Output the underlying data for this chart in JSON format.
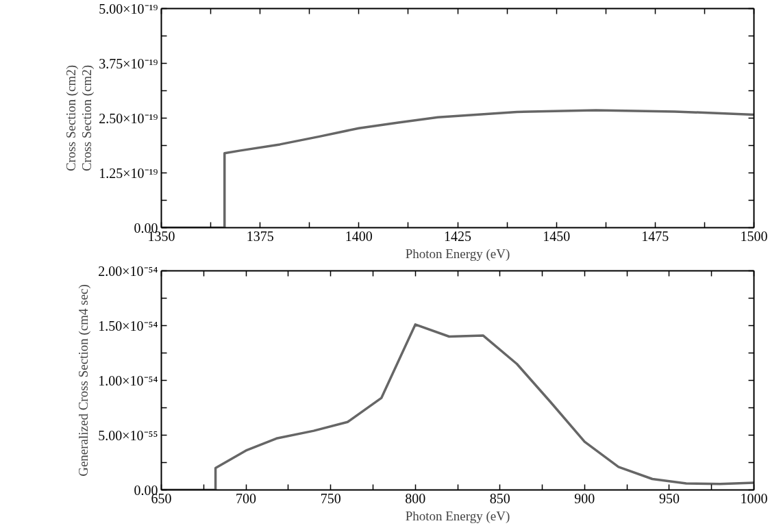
{
  "chart_data": [
    {
      "type": "line",
      "xlabel": "Photon Energy (eV)",
      "ylabel": "Cross Section (cm2)",
      "annotations": [
        "Cross Section (cm2)"
      ],
      "x": [
        1350,
        1366,
        1366,
        1370,
        1380,
        1390,
        1400,
        1410,
        1420,
        1440,
        1460,
        1480,
        1500
      ],
      "series": [
        {
          "color": "#666666",
          "values": [
            0,
            0,
            1.7e-19,
            1.76e-19,
            1.9e-19,
            2.08e-19,
            2.27e-19,
            2.4e-19,
            2.52e-19,
            2.64e-19,
            2.68e-19,
            2.65e-19,
            2.58e-19
          ]
        }
      ],
      "xlim": [
        1350,
        1500
      ],
      "ylim": [
        0,
        5e-19
      ],
      "xticks": [
        1350,
        {
          "value": 1362.5,
          "label": null
        },
        1375,
        {
          "value": 1387.5,
          "label": null
        },
        1400,
        {
          "value": 1412.5,
          "label": null
        },
        1425,
        {
          "value": 1437.5,
          "label": null
        },
        1450,
        {
          "value": 1462.5,
          "label": null
        },
        1475,
        {
          "value": 1487.5,
          "label": null
        },
        1500
      ],
      "yticks": [
        {
          "value": 0,
          "label": "0.00"
        },
        {
          "value": 6.25e-20,
          "label": null
        },
        {
          "value": 1.25e-19,
          "label": "1.25×10⁻¹⁹"
        },
        {
          "value": 1.875e-19,
          "label": null
        },
        {
          "value": 2.5e-19,
          "label": "2.50×10⁻¹⁹"
        },
        {
          "value": 3.125e-19,
          "label": null
        },
        {
          "value": 3.75e-19,
          "label": "3.75×10⁻¹⁹"
        },
        {
          "value": 4.375e-19,
          "label": null
        },
        {
          "value": 5e-19,
          "label": "5.00×10⁻¹⁹"
        }
      ],
      "grid": false,
      "marker": "none",
      "line_style": "solid"
    },
    {
      "type": "line",
      "xlabel": "Photon Energy (eV)",
      "ylabel": "Generalized Cross Section (cm4 sec)",
      "x": [
        650,
        682,
        682,
        700,
        718,
        740,
        760,
        780,
        800,
        820,
        840,
        860,
        880,
        900,
        920,
        940,
        960,
        980,
        1000
      ],
      "series": [
        {
          "color": "#666666",
          "values": [
            0,
            0,
            2e-55,
            3.6e-55,
            4.7e-55,
            5.4e-55,
            6.2e-55,
            8.4e-55,
            1.51e-54,
            1.4e-54,
            1.41e-54,
            1.15e-54,
            8e-55,
            4.4e-55,
            2.1e-55,
            1e-55,
            6e-56,
            5.5e-56,
            6.5e-56
          ]
        }
      ],
      "xlim": [
        650,
        1000
      ],
      "ylim": [
        0,
        2e-54
      ],
      "xticks": [
        650,
        {
          "value": 675,
          "label": null
        },
        700,
        {
          "value": 725,
          "label": null
        },
        750,
        {
          "value": 775,
          "label": null
        },
        800,
        {
          "value": 825,
          "label": null
        },
        850,
        {
          "value": 875,
          "label": null
        },
        900,
        {
          "value": 925,
          "label": null
        },
        950,
        {
          "value": 975,
          "label": null
        },
        1000
      ],
      "yticks": [
        {
          "value": 0,
          "label": "0.00"
        },
        {
          "value": 2.5e-55,
          "label": null
        },
        {
          "value": 5e-55,
          "label": "5.00×10⁻⁵⁵"
        },
        {
          "value": 7.5e-55,
          "label": null
        },
        {
          "value": 1e-54,
          "label": "1.00×10⁻⁵⁴"
        },
        {
          "value": 1.25e-54,
          "label": null
        },
        {
          "value": 1.5e-54,
          "label": "1.50×10⁻⁵⁴"
        },
        {
          "value": 1.75e-54,
          "label": null
        },
        {
          "value": 2e-54,
          "label": "2.00×10⁻⁵⁴"
        }
      ],
      "grid": false,
      "marker": "none",
      "line_style": "solid"
    }
  ]
}
